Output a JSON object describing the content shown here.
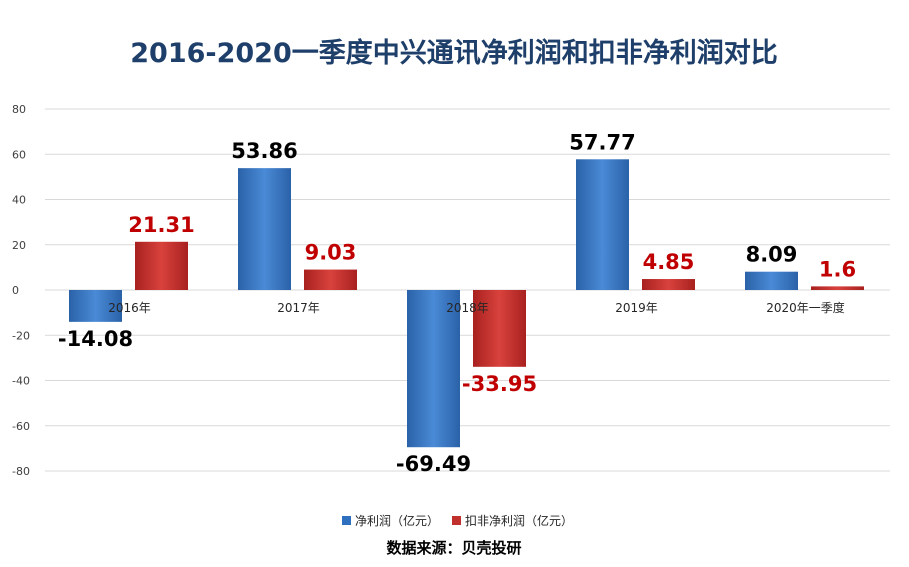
{
  "chart_data": {
    "type": "bar",
    "title": "2016-2020一季度中兴通讯净利润和扣非净利润对比",
    "categories": [
      "2016年",
      "2017年",
      "2018年",
      "2019年",
      "2020年一季度"
    ],
    "series": [
      {
        "name": "净利润（亿元）",
        "values": [
          -14.08,
          53.86,
          -69.49,
          57.77,
          8.09
        ],
        "color": "#2e6fbf",
        "label_color": "#000000"
      },
      {
        "name": "扣非净利润（亿元）",
        "values": [
          21.31,
          9.03,
          -33.95,
          4.85,
          1.6
        ],
        "color": "#c0302c",
        "label_color": "#c00000"
      }
    ],
    "ylim": [
      -80,
      80
    ],
    "yticks": [
      -80,
      -60,
      -40,
      -20,
      0,
      20,
      40,
      60,
      80
    ],
    "grid": true,
    "legend": "bottom",
    "source": "数据来源：贝壳投研"
  }
}
